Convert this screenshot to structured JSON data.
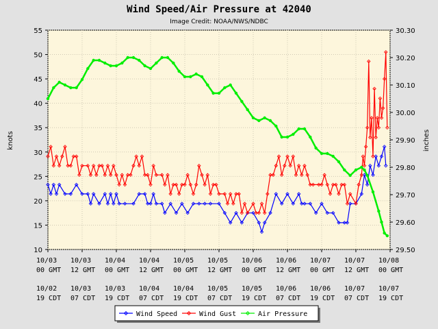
{
  "chart_data": {
    "type": "line",
    "title": "Wind Speed/Air Pressure at 42040",
    "subtitle": "Image Credit: NOAA/NWS/NDBC",
    "ylabel": "knots",
    "y2label": "inches",
    "ylim": [
      10,
      55
    ],
    "y2lim": [
      29.5,
      30.3
    ],
    "yticks": [
      "10",
      "15",
      "20",
      "25",
      "30",
      "35",
      "40",
      "45",
      "50",
      "55"
    ],
    "y2ticks": [
      "29.50",
      "29.60",
      "29.70",
      "29.80",
      "29.90",
      "30.00",
      "30.10",
      "30.20",
      "30.30"
    ],
    "xlim": [
      0,
      120
    ],
    "x_unit": "hours since 10/03 00 GMT",
    "xticks_gmt": [
      {
        "date": "10/03",
        "time": "00 GMT"
      },
      {
        "date": "10/03",
        "time": "12 GMT"
      },
      {
        "date": "10/04",
        "time": "00 GMT"
      },
      {
        "date": "10/04",
        "time": "12 GMT"
      },
      {
        "date": "10/05",
        "time": "00 GMT"
      },
      {
        "date": "10/05",
        "time": "12 GMT"
      },
      {
        "date": "10/06",
        "time": "00 GMT"
      },
      {
        "date": "10/06",
        "time": "12 GMT"
      },
      {
        "date": "10/07",
        "time": "00 GMT"
      },
      {
        "date": "10/07",
        "time": "12 GMT"
      },
      {
        "date": "10/08",
        "time": "00 GMT"
      }
    ],
    "xticks_cdt": [
      {
        "date": "10/02",
        "time": "19 CDT"
      },
      {
        "date": "10/03",
        "time": "07 CDT"
      },
      {
        "date": "10/03",
        "time": "19 CDT"
      },
      {
        "date": "10/04",
        "time": "07 CDT"
      },
      {
        "date": "10/04",
        "time": "19 CDT"
      },
      {
        "date": "10/05",
        "time": "07 CDT"
      },
      {
        "date": "10/05",
        "time": "19 CDT"
      },
      {
        "date": "10/06",
        "time": "07 CDT"
      },
      {
        "date": "10/06",
        "time": "19 CDT"
      },
      {
        "date": "10/07",
        "time": "07 CDT"
      },
      {
        "date": "10/07",
        "time": "19 CDT"
      }
    ],
    "legend": [
      "Wind Speed",
      "Wind Gust",
      "Air Pressure"
    ],
    "legend_position": "bottom-center",
    "series": [
      {
        "name": "Wind Speed",
        "axis": "left",
        "color": "#0000ff",
        "points": [
          [
            0,
            23.3
          ],
          [
            1,
            21.4
          ],
          [
            2,
            23.3
          ],
          [
            3,
            21.4
          ],
          [
            4,
            23.3
          ],
          [
            6,
            21.4
          ],
          [
            8,
            21.4
          ],
          [
            10,
            23.3
          ],
          [
            12,
            21.4
          ],
          [
            14,
            21.4
          ],
          [
            15,
            19.4
          ],
          [
            16,
            21.4
          ],
          [
            18,
            19.4
          ],
          [
            20,
            21.4
          ],
          [
            21,
            19.4
          ],
          [
            22,
            21.4
          ],
          [
            23,
            19.4
          ],
          [
            24,
            21.4
          ],
          [
            25,
            19.4
          ],
          [
            27,
            19.4
          ],
          [
            30,
            19.4
          ],
          [
            32,
            21.4
          ],
          [
            34,
            21.4
          ],
          [
            35,
            19.4
          ],
          [
            36,
            19.4
          ],
          [
            37,
            21.4
          ],
          [
            38,
            19.4
          ],
          [
            40,
            19.4
          ],
          [
            41,
            17.5
          ],
          [
            43,
            19.4
          ],
          [
            45,
            17.5
          ],
          [
            47,
            19.4
          ],
          [
            49,
            17.5
          ],
          [
            51,
            19.4
          ],
          [
            53,
            19.4
          ],
          [
            55,
            19.4
          ],
          [
            57,
            19.4
          ],
          [
            60,
            19.4
          ],
          [
            62,
            17.5
          ],
          [
            64,
            15.5
          ],
          [
            66,
            17.5
          ],
          [
            68,
            15.5
          ],
          [
            70,
            17.5
          ],
          [
            72,
            17.5
          ],
          [
            74,
            15.5
          ],
          [
            75,
            13.6
          ],
          [
            76,
            15.5
          ],
          [
            78,
            17.5
          ],
          [
            80,
            21.4
          ],
          [
            82,
            19.4
          ],
          [
            84,
            21.4
          ],
          [
            86,
            19.4
          ],
          [
            88,
            21.4
          ],
          [
            89,
            19.4
          ],
          [
            90,
            19.4
          ],
          [
            92,
            19.4
          ],
          [
            94,
            17.5
          ],
          [
            96,
            19.4
          ],
          [
            98,
            17.5
          ],
          [
            100,
            17.5
          ],
          [
            102,
            15.5
          ],
          [
            104,
            15.5
          ],
          [
            105,
            15.5
          ],
          [
            106,
            19.4
          ],
          [
            108,
            19.4
          ],
          [
            110,
            21.4
          ],
          [
            111,
            25.3
          ],
          [
            112,
            23.3
          ],
          [
            113,
            27.2
          ],
          [
            114,
            25.3
          ],
          [
            115,
            29.1
          ],
          [
            116,
            27.2
          ],
          [
            117,
            29.1
          ],
          [
            118,
            31.1
          ],
          [
            118.5,
            27.2
          ]
        ]
      },
      {
        "name": "Wind Gust",
        "axis": "left",
        "color": "#ff0000",
        "points": [
          [
            0,
            29.1
          ],
          [
            1,
            31.1
          ],
          [
            2,
            27.2
          ],
          [
            3,
            29.1
          ],
          [
            4,
            27.2
          ],
          [
            5,
            29.1
          ],
          [
            6,
            31.1
          ],
          [
            7,
            27.2
          ],
          [
            8,
            27.2
          ],
          [
            9,
            29.1
          ],
          [
            10,
            29.1
          ],
          [
            11,
            25.3
          ],
          [
            12,
            27.2
          ],
          [
            14,
            27.2
          ],
          [
            15,
            25.3
          ],
          [
            16,
            27.2
          ],
          [
            17,
            25.3
          ],
          [
            18,
            27.2
          ],
          [
            19,
            27.2
          ],
          [
            20,
            25.3
          ],
          [
            21,
            27.2
          ],
          [
            22,
            25.3
          ],
          [
            23,
            27.2
          ],
          [
            24,
            25.3
          ],
          [
            25,
            23.3
          ],
          [
            26,
            25.3
          ],
          [
            27,
            23.3
          ],
          [
            28,
            25.3
          ],
          [
            29,
            25.3
          ],
          [
            30,
            27.2
          ],
          [
            31,
            29.1
          ],
          [
            32,
            27.2
          ],
          [
            33,
            29.1
          ],
          [
            34,
            25.3
          ],
          [
            35,
            25.3
          ],
          [
            36,
            23.3
          ],
          [
            37,
            27.2
          ],
          [
            38,
            25.3
          ],
          [
            40,
            25.3
          ],
          [
            41,
            23.3
          ],
          [
            42,
            25.3
          ],
          [
            43,
            21.4
          ],
          [
            44,
            23.3
          ],
          [
            45,
            23.3
          ],
          [
            46,
            21.4
          ],
          [
            47,
            23.3
          ],
          [
            48,
            23.3
          ],
          [
            49,
            25.3
          ],
          [
            50,
            23.3
          ],
          [
            51,
            21.4
          ],
          [
            52,
            23.3
          ],
          [
            53,
            27.2
          ],
          [
            54,
            25.3
          ],
          [
            55,
            23.3
          ],
          [
            56,
            25.3
          ],
          [
            57,
            21.4
          ],
          [
            58,
            23.3
          ],
          [
            59,
            23.3
          ],
          [
            60,
            21.4
          ],
          [
            62,
            21.4
          ],
          [
            63,
            19.4
          ],
          [
            64,
            21.4
          ],
          [
            65,
            19.4
          ],
          [
            66,
            21.4
          ],
          [
            67,
            21.4
          ],
          [
            68,
            17.5
          ],
          [
            69,
            19.4
          ],
          [
            70,
            17.5
          ],
          [
            72,
            19.4
          ],
          [
            73,
            17.5
          ],
          [
            74,
            17.5
          ],
          [
            75,
            19.4
          ],
          [
            76,
            17.5
          ],
          [
            77,
            21.4
          ],
          [
            78,
            25.3
          ],
          [
            79,
            25.3
          ],
          [
            80,
            27.2
          ],
          [
            81,
            29.1
          ],
          [
            82,
            25.3
          ],
          [
            83,
            27.2
          ],
          [
            84,
            29.1
          ],
          [
            85,
            27.2
          ],
          [
            86,
            29.1
          ],
          [
            87,
            25.3
          ],
          [
            88,
            27.2
          ],
          [
            89,
            25.3
          ],
          [
            90,
            27.2
          ],
          [
            91,
            25.3
          ],
          [
            92,
            23.3
          ],
          [
            93,
            23.3
          ],
          [
            95,
            23.3
          ],
          [
            96,
            23.3
          ],
          [
            97,
            25.3
          ],
          [
            98,
            23.3
          ],
          [
            99,
            21.4
          ],
          [
            100,
            23.3
          ],
          [
            101,
            23.3
          ],
          [
            102,
            21.4
          ],
          [
            103,
            23.3
          ],
          [
            104,
            23.3
          ],
          [
            105,
            19.4
          ],
          [
            106,
            21.4
          ],
          [
            108,
            19.4
          ],
          [
            109,
            23.3
          ],
          [
            110,
            25.3
          ],
          [
            110.5,
            29.1
          ],
          [
            111,
            27.2
          ],
          [
            111.5,
            31.1
          ],
          [
            112,
            35
          ],
          [
            112.5,
            48.6
          ],
          [
            113,
            33
          ],
          [
            113.5,
            37
          ],
          [
            114,
            29.1
          ],
          [
            114.5,
            43
          ],
          [
            115,
            33
          ],
          [
            115.5,
            37
          ],
          [
            116,
            35
          ],
          [
            116.5,
            41
          ],
          [
            117,
            37
          ],
          [
            117.5,
            39
          ],
          [
            118,
            45
          ],
          [
            118.5,
            50.5
          ],
          [
            119,
            35
          ]
        ]
      },
      {
        "name": "Air Pressure",
        "axis": "right",
        "color": "#00ee00",
        "points": [
          [
            0,
            30.05
          ],
          [
            2,
            30.09
          ],
          [
            4,
            30.11
          ],
          [
            6,
            30.1
          ],
          [
            8,
            30.09
          ],
          [
            10,
            30.09
          ],
          [
            12,
            30.12
          ],
          [
            14,
            30.16
          ],
          [
            16,
            30.19
          ],
          [
            18,
            30.19
          ],
          [
            20,
            30.18
          ],
          [
            22,
            30.17
          ],
          [
            24,
            30.17
          ],
          [
            26,
            30.18
          ],
          [
            28,
            30.2
          ],
          [
            30,
            30.2
          ],
          [
            32,
            30.19
          ],
          [
            34,
            30.17
          ],
          [
            36,
            30.16
          ],
          [
            38,
            30.18
          ],
          [
            40,
            30.2
          ],
          [
            42,
            30.2
          ],
          [
            44,
            30.18
          ],
          [
            46,
            30.15
          ],
          [
            48,
            30.13
          ],
          [
            50,
            30.13
          ],
          [
            52,
            30.14
          ],
          [
            54,
            30.13
          ],
          [
            56,
            30.1
          ],
          [
            58,
            30.07
          ],
          [
            60,
            30.07
          ],
          [
            62,
            30.09
          ],
          [
            64,
            30.1
          ],
          [
            66,
            30.07
          ],
          [
            68,
            30.04
          ],
          [
            70,
            30.01
          ],
          [
            72,
            29.98
          ],
          [
            74,
            29.97
          ],
          [
            76,
            29.98
          ],
          [
            78,
            29.97
          ],
          [
            80,
            29.95
          ],
          [
            82,
            29.91
          ],
          [
            84,
            29.91
          ],
          [
            86,
            29.92
          ],
          [
            88,
            29.94
          ],
          [
            90,
            29.94
          ],
          [
            92,
            29.91
          ],
          [
            94,
            29.87
          ],
          [
            96,
            29.85
          ],
          [
            98,
            29.85
          ],
          [
            100,
            29.84
          ],
          [
            102,
            29.82
          ],
          [
            104,
            29.79
          ],
          [
            106,
            29.77
          ],
          [
            108,
            29.79
          ],
          [
            110,
            29.8
          ],
          [
            111,
            29.79
          ],
          [
            112,
            29.77
          ],
          [
            114,
            29.71
          ],
          [
            116,
            29.64
          ],
          [
            117,
            29.6
          ],
          [
            118,
            29.56
          ],
          [
            119,
            29.55
          ]
        ]
      }
    ]
  }
}
